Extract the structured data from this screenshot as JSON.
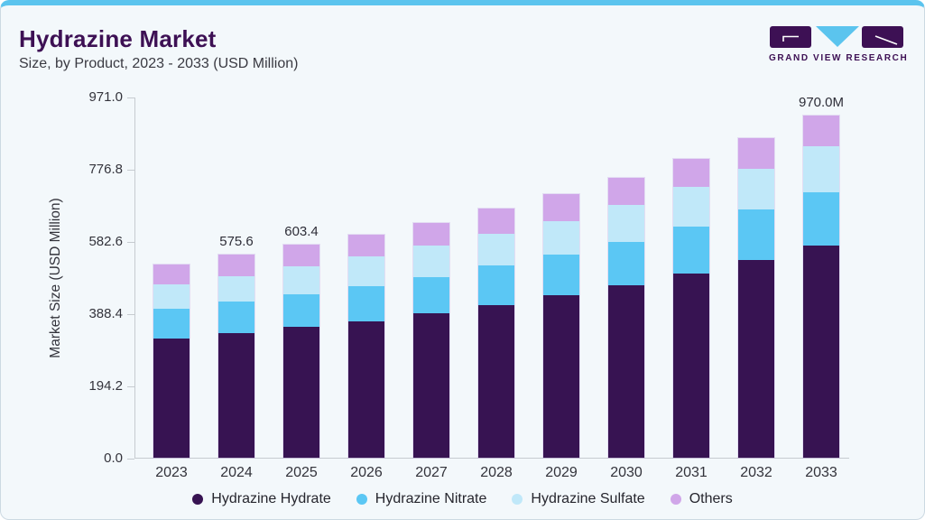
{
  "header": {
    "title": "Hydrazine Market",
    "subtitle": "Size, by Product, 2023 - 2033 (USD Million)"
  },
  "brand": {
    "name": "GRAND VIEW RESEARCH",
    "mark_colors": {
      "blocks": "#3d1054",
      "triangle": "#5bc4ee",
      "strokes": "#ffffff"
    }
  },
  "chart_data": {
    "type": "bar",
    "stacked": true,
    "title": "Hydrazine Market Size, by Product, 2023 - 2033 (USD Million)",
    "xlabel": "",
    "ylabel": "Market Size (USD Million)",
    "ylim": [
      0,
      971
    ],
    "yticks": [
      "971.0",
      "776.8",
      "582.6",
      "388.4",
      "194.2",
      "0.0"
    ],
    "grid": false,
    "legend_position": "bottom",
    "categories": [
      "2023",
      "2024",
      "2025",
      "2026",
      "2027",
      "2028",
      "2029",
      "2030",
      "2031",
      "2032",
      "2033"
    ],
    "series": [
      {
        "name": "Hydrazine Hydrate",
        "color": "#371352",
        "values": [
          337.6,
          353.0,
          371.7,
          387.1,
          408.4,
          432.5,
          459.7,
          489.7,
          521.2,
          559.7,
          600.7
        ]
      },
      {
        "name": "Hydrazine Nitrate",
        "color": "#5bc7f4",
        "values": [
          83.6,
          89.8,
          92.3,
          100.0,
          102.6,
          111.8,
          115.4,
          122.4,
          132.6,
          142.9,
          151.3
        ]
      },
      {
        "name": "Hydrazine Sulfate",
        "color": "#c0e8f9",
        "values": [
          71.1,
          72.6,
          79.5,
          82.1,
          89.8,
          90.8,
          95.9,
          104.1,
          112.9,
          117.2,
          130.8
        ]
      },
      {
        "name": "Others",
        "color": "#d0a6e9",
        "values": [
          54.6,
          60.2,
          59.9,
          63.4,
          65.2,
          70.8,
          75.2,
          77.0,
          80.3,
          84.6,
          87.2
        ]
      }
    ],
    "totals": [
      546.9,
      575.6,
      603.4,
      632.6,
      666.0,
      705.9,
      746.2,
      793.2,
      847.0,
      904.4,
      970.0
    ],
    "bar_labels": {
      "2024": "575.6",
      "2025": "603.4",
      "2033": "970.0M"
    }
  }
}
